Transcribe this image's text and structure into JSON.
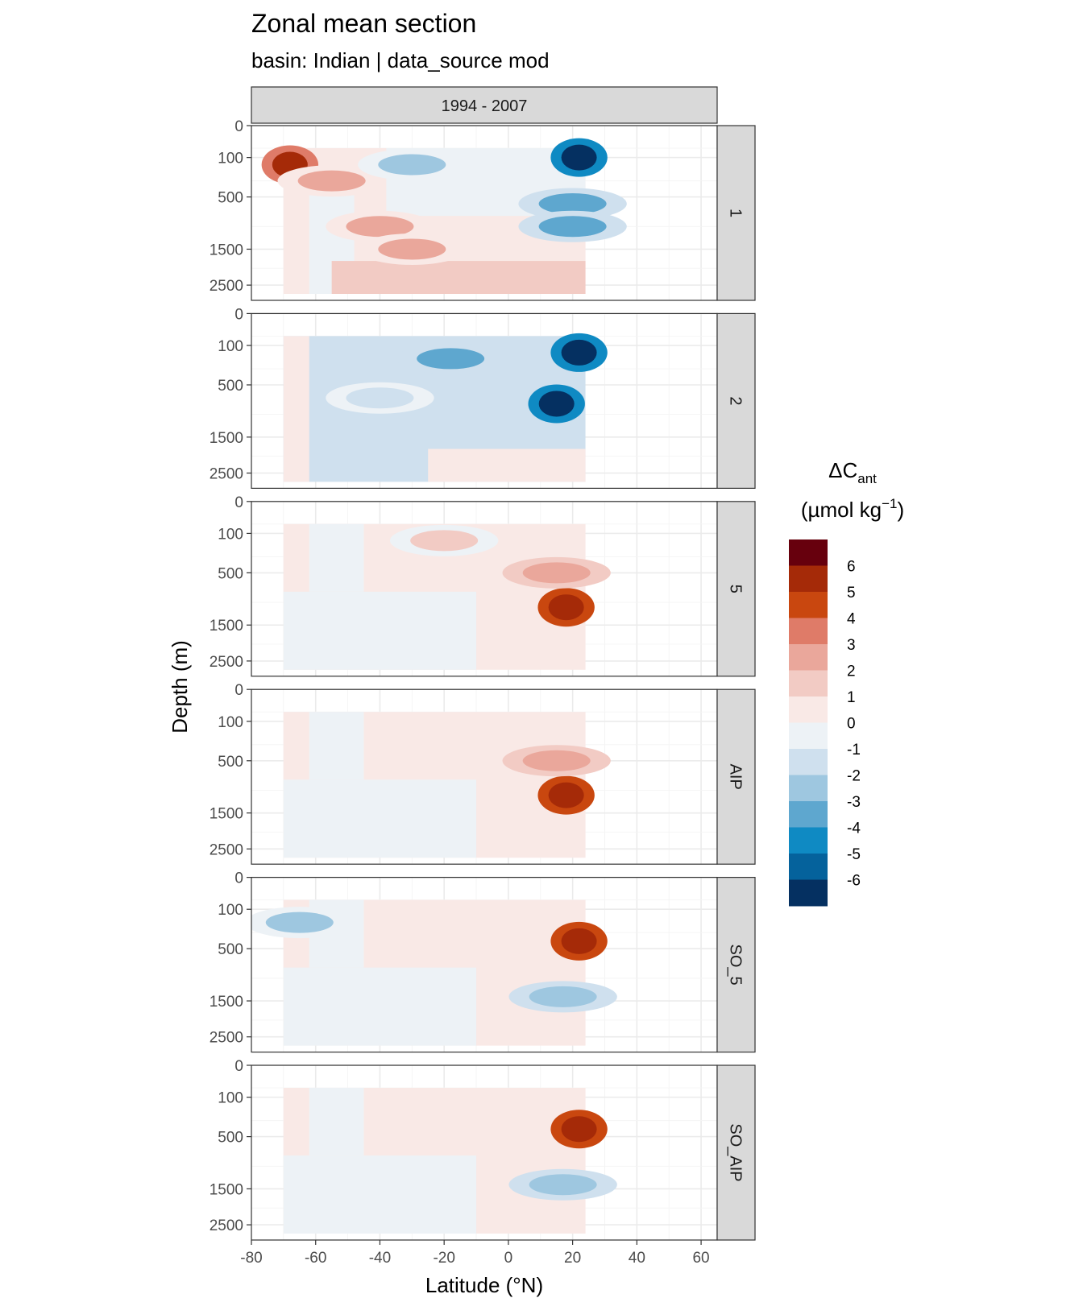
{
  "chart_data": {
    "type": "heatmap",
    "title": "Zonal mean section",
    "subtitle": "basin: Indian | data_source mod",
    "facet_column": "1994 - 2007",
    "facet_rows": [
      "1",
      "2",
      "5",
      "AIP",
      "SO_5",
      "SO_AIP"
    ],
    "xlabel": "Latitude (°N)",
    "ylabel": "Depth (m)",
    "xlim": [
      -80,
      65
    ],
    "xticks": [
      -80,
      -60,
      -40,
      -20,
      0,
      20,
      40,
      60
    ],
    "y_scale": "reversed sqrt",
    "ylim": [
      0,
      3000
    ],
    "yticks": [
      0,
      100,
      500,
      1500,
      2500
    ],
    "data_extent": {
      "lat": [
        -70,
        24
      ],
      "depth": [
        50,
        3000
      ]
    },
    "grid": true,
    "legend": {
      "title": "ΔC",
      "title_sub": "ant",
      "unit_prefix": "(µmol kg",
      "unit_sup": "−1",
      "unit_suffix": ")",
      "position": "right",
      "colors": [
        "#67000d",
        "#a52a08",
        "#c9470f",
        "#df7b68",
        "#eaa79b",
        "#f2cbc4",
        "#f9e9e6",
        "#edf2f6",
        "#cfe0ee",
        "#9ec7e0",
        "#5ea7cf",
        "#0f8ac3",
        "#05629c",
        "#053061"
      ],
      "labels": [
        "6",
        "5",
        "4",
        "3",
        "2",
        "1",
        "0",
        "-1",
        "-2",
        "-3",
        "-4",
        "-5",
        "-6"
      ]
    },
    "features": [
      {
        "panel": "1",
        "lat": -68,
        "depth": 150,
        "value": 5.5
      },
      {
        "panel": "1",
        "lat": -55,
        "depth": 300,
        "value": 2.5
      },
      {
        "panel": "1",
        "lat": -40,
        "depth": 1000,
        "value": 2.5
      },
      {
        "panel": "1",
        "lat": -30,
        "depth": 1500,
        "value": 2.5
      },
      {
        "panel": "1",
        "lat": -30,
        "depth": 150,
        "value": -2
      },
      {
        "panel": "1",
        "lat": 22,
        "depth": 100,
        "value": -6
      },
      {
        "panel": "1",
        "lat": 20,
        "depth": 600,
        "value": -3
      },
      {
        "panel": "1",
        "lat": 20,
        "depth": 1000,
        "value": -3
      },
      {
        "panel": "2",
        "lat": -18,
        "depth": 200,
        "value": -3
      },
      {
        "panel": "2",
        "lat": 15,
        "depth": 800,
        "value": -6
      },
      {
        "panel": "2",
        "lat": 22,
        "depth": 150,
        "value": -6
      },
      {
        "panel": "2",
        "lat": -40,
        "depth": 700,
        "value": -1.5
      },
      {
        "panel": "5",
        "lat": 18,
        "depth": 1100,
        "value": 6
      },
      {
        "panel": "5",
        "lat": 15,
        "depth": 500,
        "value": 3
      },
      {
        "panel": "5",
        "lat": -20,
        "depth": 150,
        "value": 1.5
      },
      {
        "panel": "AIP",
        "lat": 18,
        "depth": 1100,
        "value": 6
      },
      {
        "panel": "AIP",
        "lat": 15,
        "depth": 500,
        "value": 3
      },
      {
        "panel": "SO_5",
        "lat": 22,
        "depth": 400,
        "value": 6
      },
      {
        "panel": "SO_5",
        "lat": -65,
        "depth": 200,
        "value": -2
      },
      {
        "panel": "SO_5",
        "lat": 17,
        "depth": 1400,
        "value": -2.5
      },
      {
        "panel": "SO_AIP",
        "lat": 22,
        "depth": 400,
        "value": 6
      },
      {
        "panel": "SO_AIP",
        "lat": 17,
        "depth": 1400,
        "value": -2.5
      }
    ]
  }
}
